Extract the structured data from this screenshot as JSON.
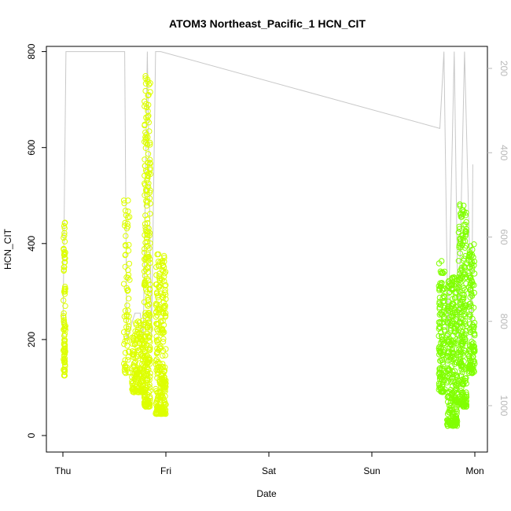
{
  "chart_data": {
    "type": "scatter",
    "title": "ATOM3 Northeast_Pacific_1 HCN_CIT",
    "xlabel": "Date",
    "ylabel": "HCN_CIT",
    "x_ticks": [
      "Thu",
      "Fri",
      "Sat",
      "Sun",
      "Mon"
    ],
    "ylim": [
      -20,
      810
    ],
    "y_ticks": [
      0,
      200,
      400,
      600,
      800
    ],
    "y2_ticks": [
      200,
      400,
      600,
      800,
      1000
    ],
    "y2_reversed": true,
    "colors": {
      "points_early": "#ddff00",
      "points_late": "#80ff00",
      "trace": "#c8c8c8",
      "right_axis": "#b8b8b8"
    },
    "clusters": [
      {
        "day": 0.015,
        "spread": 0.01,
        "y_min": 125,
        "y_max": 445,
        "n": 90,
        "color": "early"
      },
      {
        "day": 0.62,
        "spread": 0.03,
        "y_min": 130,
        "y_max": 495,
        "n": 70,
        "color": "early"
      },
      {
        "day": 0.73,
        "spread": 0.06,
        "y_min": 90,
        "y_max": 240,
        "n": 170,
        "color": "early"
      },
      {
        "day": 0.82,
        "spread": 0.03,
        "y_min": 60,
        "y_max": 780,
        "n": 260,
        "color": "early"
      },
      {
        "day": 0.95,
        "spread": 0.05,
        "y_min": 45,
        "y_max": 380,
        "n": 260,
        "color": "early"
      },
      {
        "day": 3.68,
        "spread": 0.03,
        "y_min": 90,
        "y_max": 365,
        "n": 130,
        "color": "late"
      },
      {
        "day": 3.78,
        "spread": 0.05,
        "y_min": 20,
        "y_max": 330,
        "n": 260,
        "color": "late"
      },
      {
        "day": 3.88,
        "spread": 0.04,
        "y_min": 60,
        "y_max": 485,
        "n": 230,
        "color": "late"
      },
      {
        "day": 3.97,
        "spread": 0.03,
        "y_min": 130,
        "y_max": 400,
        "n": 130,
        "color": "late"
      }
    ],
    "trace": [
      [
        0.0,
        200
      ],
      [
        0.03,
        800
      ],
      [
        0.6,
        800
      ],
      [
        0.62,
        200
      ],
      [
        0.7,
        255
      ],
      [
        0.75,
        255
      ],
      [
        0.78,
        200
      ],
      [
        0.82,
        800
      ],
      [
        0.86,
        200
      ],
      [
        0.9,
        800
      ],
      [
        0.95,
        800
      ],
      [
        3.66,
        640
      ],
      [
        3.7,
        800
      ],
      [
        3.74,
        200
      ],
      [
        3.8,
        800
      ],
      [
        3.84,
        200
      ],
      [
        3.9,
        800
      ],
      [
        3.97,
        200
      ],
      [
        3.98,
        565
      ]
    ]
  }
}
